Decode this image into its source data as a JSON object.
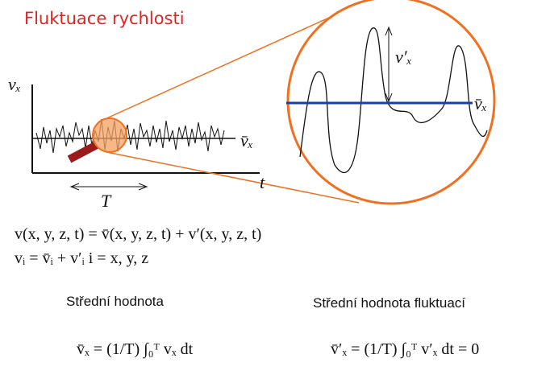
{
  "title": "Fluktuace rychlosti",
  "diagram": {
    "y_axis_label": "vₓ",
    "mean_label": "v̄ₓ",
    "time_label": "t",
    "period_label": "T",
    "zoom_mean_label": "v̄ₓ",
    "fluctuation_label": "v′ₓ"
  },
  "equations": [
    "v(x, y, z, t) = v̄(x, y, z, t) + v′(x, y, z, t)",
    "vᵢ = v̄ᵢ + v′ᵢ    i = x, y, z"
  ],
  "sections": [
    {
      "heading": "Střední hodnota",
      "formula": "v̄ₓ = (1/T) ∫₀ᵀ vₓ dt"
    },
    {
      "heading": "Střední hodnota fluktuací",
      "formula": "v̄′ₓ = (1/T) ∫₀ᵀ v′ₓ dt = 0"
    }
  ]
}
